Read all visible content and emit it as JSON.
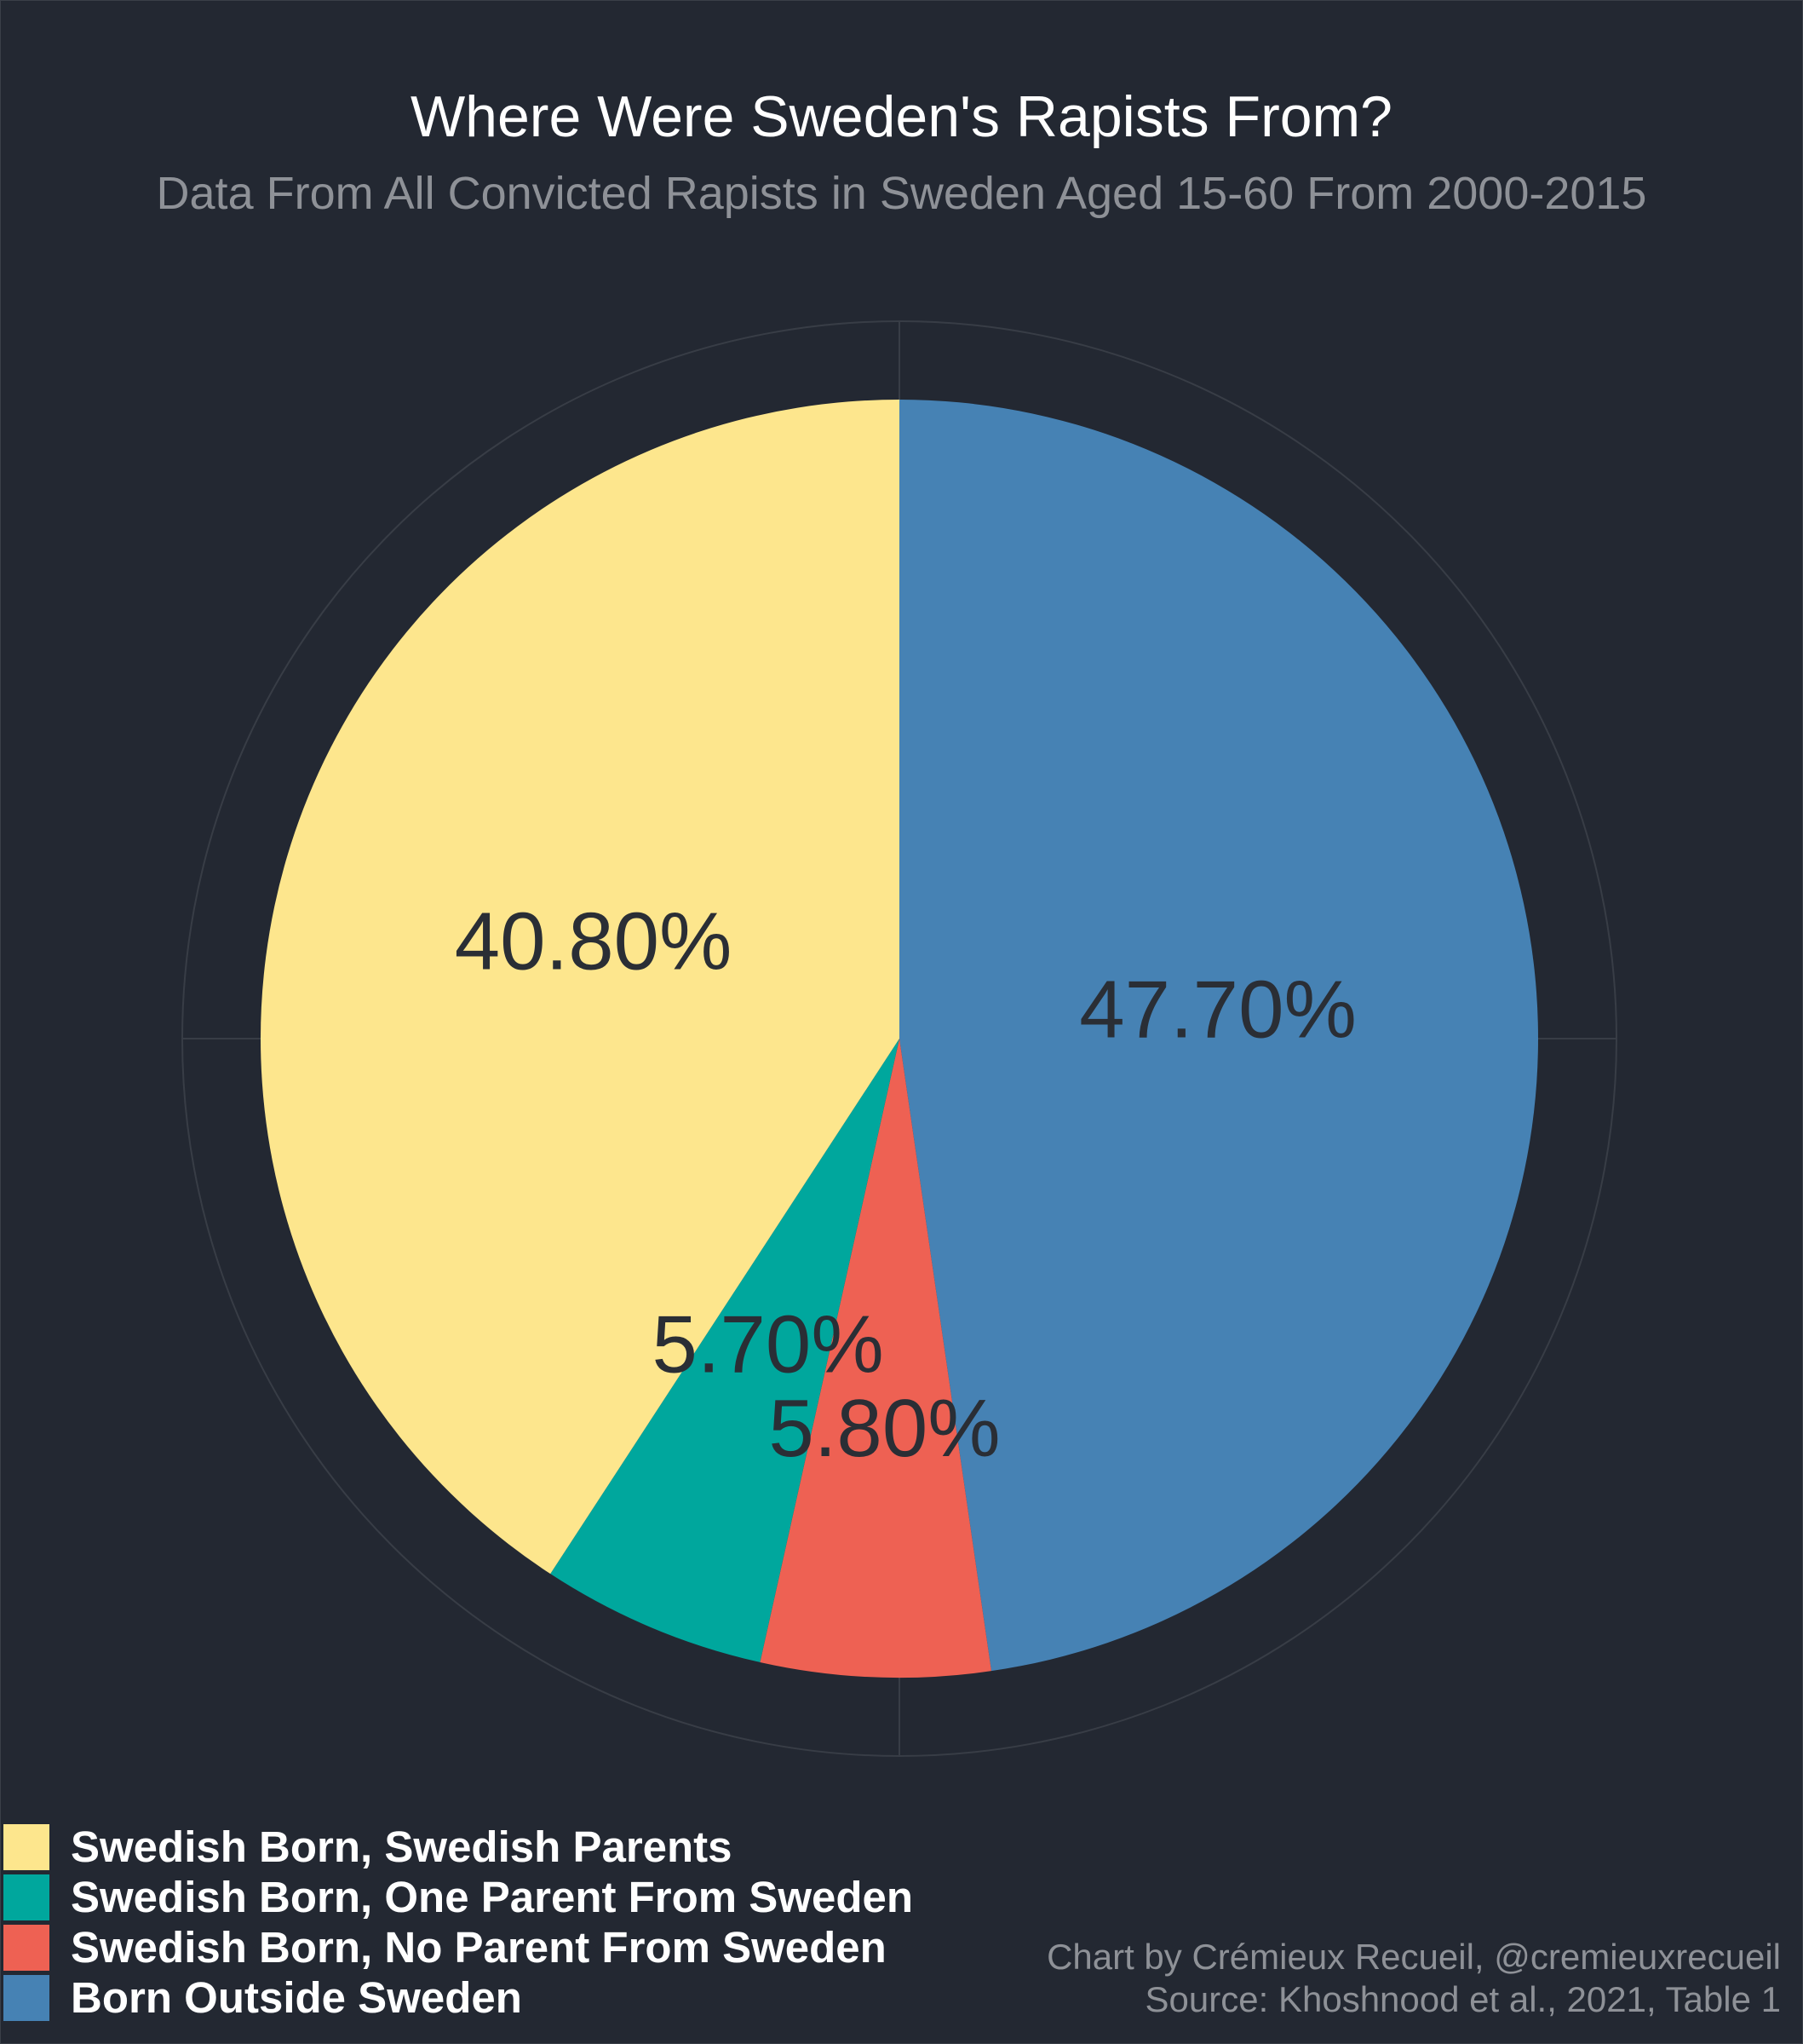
{
  "chart_data": {
    "type": "pie",
    "title": "Where Were Sweden's Rapists From?",
    "subtitle": "Data From All Convicted Rapists in Sweden Aged 15-60 From 2000-2015",
    "direction": "clockwise from 12 o'clock",
    "slices": [
      {
        "name": "Born Outside Sweden",
        "value": 47.7,
        "label": "47.70%",
        "color": "#4682B4"
      },
      {
        "name": "Swedish Born, No Parent From Sweden",
        "value": 5.8,
        "label": "5.80%",
        "color": "#EE6153"
      },
      {
        "name": "Swedish Born, One Parent From Sweden",
        "value": 5.7,
        "label": "5.70%",
        "color": "#00A79D"
      },
      {
        "name": "Swedish Born, Swedish Parents",
        "value": 40.8,
        "label": "40.80%",
        "color": "#FDE68D"
      }
    ],
    "legend": {
      "position": "bottom-left",
      "entries": [
        {
          "name": "Swedish Born, Swedish Parents",
          "color": "#FDE68D"
        },
        {
          "name": "Swedish Born, One Parent From Sweden",
          "color": "#00A79D"
        },
        {
          "name": "Swedish Born, No Parent From Sweden",
          "color": "#EE6153"
        },
        {
          "name": "Born Outside Sweden",
          "color": "#4682B4"
        }
      ]
    },
    "caption": {
      "line1": "Chart by Crémieux Recueil, @cremieuxrecueil",
      "line2": "Source: Khoshnood et al., 2021, Table 1"
    }
  }
}
